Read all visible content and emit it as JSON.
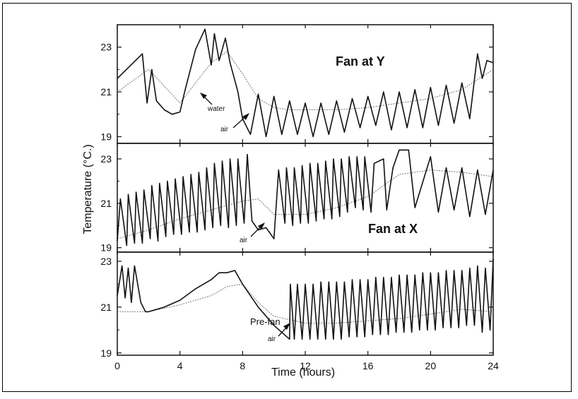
{
  "chart_data": {
    "type": "line",
    "xlabel": "Time (hours)",
    "ylabel": "Temperature (°C.)",
    "xlim": [
      0,
      24
    ],
    "x_ticks": [
      0,
      4,
      8,
      12,
      16,
      20,
      24
    ],
    "y_ticks": [
      19,
      21,
      23
    ],
    "legend": "none",
    "panels": [
      {
        "title": "Fan at Y",
        "ylim": [
          18.7,
          24
        ],
        "series": [
          {
            "name": "air",
            "color": "#111111",
            "x": [
              0,
              1.6,
              1.9,
              2.2,
              2.5,
              3.0,
              3.5,
              4.0,
              4.3,
              5.0,
              5.6,
              6.0,
              6.2,
              6.5,
              6.9,
              7.2,
              7.7,
              8.0,
              8.5,
              9.0,
              9.5,
              10.0,
              10.5,
              11,
              11.5,
              12,
              12.5,
              13,
              13.5,
              14,
              14.5,
              15,
              15.5,
              16,
              16.5,
              17,
              17.5,
              18,
              18.5,
              19,
              19.5,
              20,
              20.5,
              21,
              21.5,
              22,
              22.5,
              23,
              23.3,
              23.6,
              24
            ],
            "y": [
              21.6,
              22.7,
              20.5,
              22.0,
              20.6,
              20.2,
              20.0,
              20.1,
              21.0,
              22.9,
              23.8,
              22.2,
              23.6,
              22.4,
              23.4,
              22.3,
              21.0,
              19.8,
              19.1,
              20.9,
              19.0,
              20.8,
              19.1,
              20.6,
              19.1,
              20.5,
              19.0,
              20.5,
              19.1,
              20.6,
              19.2,
              20.7,
              19.4,
              20.8,
              19.5,
              21.0,
              19.3,
              21.0,
              19.4,
              21.1,
              19.4,
              21.2,
              19.5,
              21.3,
              19.6,
              21.4,
              19.8,
              22.7,
              21.6,
              22.4,
              22.3
            ]
          },
          {
            "name": "water",
            "color": "#777777",
            "x": [
              0,
              2,
              4,
              6,
              7,
              8,
              9,
              10,
              11,
              12,
              14,
              16,
              18,
              20,
              22,
              24
            ],
            "y": [
              21.0,
              22.0,
              20.5,
              22.3,
              22.8,
              21.8,
              20.7,
              20.3,
              20.2,
              20.2,
              20.2,
              20.3,
              20.5,
              20.7,
              21.1,
              22.0
            ]
          }
        ],
        "annotations": [
          "water",
          "air"
        ]
      },
      {
        "title": "Fan at X",
        "ylim": [
          18.8,
          23.7
        ],
        "series": [
          {
            "name": "air",
            "color": "#111111",
            "x": [
              0,
              0.2,
              0.6,
              0.7,
              1.1,
              1.2,
              1.6,
              1.7,
              2.1,
              2.2,
              2.6,
              2.7,
              3.1,
              3.2,
              3.6,
              3.7,
              4.1,
              4.2,
              4.6,
              4.7,
              5.1,
              5.2,
              5.6,
              5.7,
              6.1,
              6.2,
              6.6,
              6.7,
              7.1,
              7.2,
              7.6,
              7.7,
              8.1,
              8.3,
              8.6,
              9.0,
              9.5,
              10.0,
              10.3,
              10.7,
              10.8,
              11.2,
              11.3,
              11.7,
              11.8,
              12.2,
              12.3,
              12.7,
              12.8,
              13.2,
              13.3,
              13.7,
              13.8,
              14.2,
              14.3,
              14.7,
              14.8,
              15.2,
              15.3,
              15.7,
              15.8,
              16.2,
              16.4,
              17.0,
              17.2,
              17.6,
              18.0,
              18.6,
              19.0,
              20.0,
              20.5,
              21.0,
              21.5,
              22.0,
              22.5,
              23.0,
              23.5,
              24
            ],
            "y": [
              19.3,
              21.2,
              19.1,
              21.4,
              19.2,
              21.5,
              19.2,
              21.6,
              19.4,
              21.8,
              19.3,
              21.9,
              19.5,
              22.0,
              19.6,
              22.1,
              19.6,
              22.2,
              19.7,
              22.3,
              19.7,
              22.4,
              19.8,
              22.6,
              19.9,
              22.8,
              20.0,
              22.9,
              19.9,
              23.0,
              20.0,
              23.0,
              20.1,
              23.2,
              20.2,
              19.8,
              19.9,
              19.4,
              22.5,
              20.1,
              22.6,
              20.0,
              22.6,
              20.1,
              22.7,
              20.1,
              22.8,
              20.2,
              22.8,
              20.3,
              22.9,
              20.3,
              23.0,
              20.4,
              23.0,
              20.6,
              23.1,
              20.8,
              23.1,
              20.7,
              23.1,
              20.6,
              22.8,
              23.0,
              20.7,
              22.6,
              23.4,
              23.4,
              20.8,
              23.1,
              20.6,
              22.6,
              20.7,
              22.6,
              20.4,
              22.5,
              20.5,
              22.5
            ]
          },
          {
            "name": "water",
            "color": "#777777",
            "x": [
              0,
              2,
              4,
              6,
              8,
              9,
              10,
              12,
              14,
              16,
              18,
              20,
              22,
              24
            ],
            "y": [
              19.4,
              19.8,
              20.3,
              20.7,
              21.1,
              21.2,
              20.5,
              20.5,
              20.8,
              21.3,
              22.3,
              22.5,
              22.4,
              22.2
            ]
          }
        ],
        "annotations": [
          "air"
        ]
      },
      {
        "title": "Pre-fan",
        "ylim": [
          18.9,
          23.4
        ],
        "series": [
          {
            "name": "air",
            "color": "#111111",
            "x": [
              0,
              0.3,
              0.5,
              0.7,
              0.9,
              1.1,
              1.5,
              1.8,
              2.0,
              3.0,
              4.0,
              5.0,
              6.0,
              6.5,
              7.0,
              7.5,
              8.0,
              9.0,
              10.0,
              11.0,
              11.05,
              11.3,
              11.5,
              11.8,
              12.0,
              12.3,
              12.5,
              12.8,
              13.0,
              13.3,
              13.5,
              13.8,
              14.0,
              14.3,
              14.5,
              14.8,
              15.0,
              15.3,
              15.5,
              15.8,
              16.0,
              16.3,
              16.5,
              16.8,
              17.0,
              17.3,
              17.5,
              17.8,
              18.0,
              18.3,
              18.5,
              18.8,
              19.0,
              19.3,
              19.5,
              19.8,
              20.0,
              20.3,
              20.5,
              20.8,
              21.0,
              21.3,
              21.5,
              21.8,
              22.0,
              22.3,
              22.5,
              22.8,
              23.0,
              23.3,
              23.5,
              23.8,
              24
            ],
            "y": [
              21.5,
              22.8,
              21.4,
              22.7,
              21.2,
              22.8,
              21.2,
              20.8,
              20.8,
              21.0,
              21.3,
              21.8,
              22.2,
              22.5,
              22.5,
              22.6,
              22.0,
              21.0,
              20.2,
              19.6,
              22.0,
              19.6,
              22.0,
              19.6,
              22.0,
              19.6,
              22.0,
              19.6,
              22.1,
              19.6,
              22.1,
              19.6,
              22.1,
              19.6,
              22.1,
              19.7,
              22.2,
              19.7,
              22.2,
              19.7,
              22.2,
              19.8,
              22.3,
              19.8,
              22.3,
              19.8,
              22.3,
              19.9,
              22.4,
              19.9,
              22.4,
              19.9,
              22.4,
              20.0,
              22.5,
              20.0,
              22.5,
              20.0,
              22.5,
              20.1,
              22.6,
              20.1,
              22.6,
              20.1,
              22.6,
              20.2,
              22.7,
              20.2,
              22.8,
              19.9,
              22.7,
              20.0,
              23.1
            ]
          },
          {
            "name": "water",
            "color": "#777777",
            "x": [
              0,
              2,
              4,
              6,
              7,
              8,
              9,
              10,
              12,
              14,
              16,
              18,
              20,
              22,
              24
            ],
            "y": [
              20.8,
              20.8,
              21.1,
              21.5,
              21.9,
              22.0,
              21.2,
              20.6,
              20.3,
              20.3,
              20.4,
              20.5,
              20.7,
              20.9,
              20.8
            ]
          }
        ],
        "annotations": [
          "air"
        ]
      }
    ]
  }
}
